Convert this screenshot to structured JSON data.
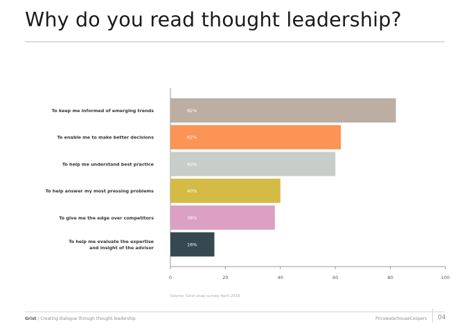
{
  "page": {
    "title": "Why do you read thought leadership?",
    "source": "Source: Grist snap survey April 2016",
    "footer": {
      "brand": "Grist",
      "tagline": "/ Creating dialogue through thought leadership",
      "company": "PricewaterhouseCoopers",
      "page_number": "04"
    }
  },
  "chart_data": {
    "type": "bar",
    "orientation": "horizontal",
    "title": "",
    "xlabel": "",
    "ylabel": "",
    "xlim": [
      0,
      100
    ],
    "x_ticks": [
      0,
      20,
      40,
      60,
      80,
      100
    ],
    "grid": false,
    "categories": [
      "To keep me informed of emerging trends",
      "To enable me to make better decisions",
      "To help me understand best practice",
      "To help answer my most pressing problems",
      "To give me the edge over competitors",
      "To help me evaluate the expertise and insight of the advisor"
    ],
    "category_lines": [
      [
        "To keep me informed of emerging trends"
      ],
      [
        "To enable me to make better decisions"
      ],
      [
        "To help me understand best practice"
      ],
      [
        "To help answer my most pressing problems"
      ],
      [
        "To give me the edge over competitors"
      ],
      [
        "To help me evaluate the expertise",
        "and insight of the advisor"
      ]
    ],
    "values": [
      82,
      62,
      60,
      40,
      38,
      16
    ],
    "value_labels": [
      "82%",
      "62%",
      "60%",
      "40%",
      "38%",
      "16%"
    ],
    "colors": [
      "#bcaea3",
      "#fb9455",
      "#c7cdc9",
      "#d4bb46",
      "#dba0c2",
      "#354a50"
    ]
  }
}
